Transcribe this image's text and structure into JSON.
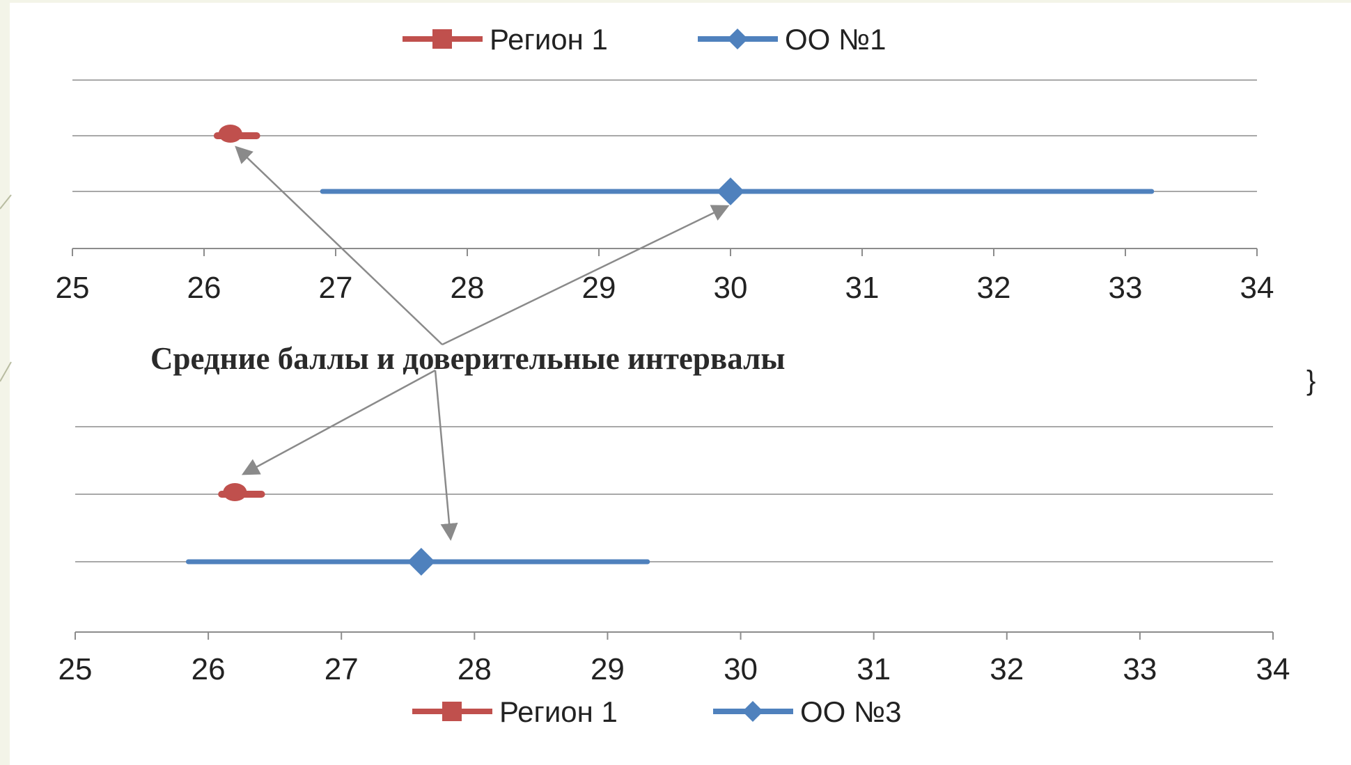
{
  "caption": "Средние баллы и доверительные интервалы",
  "side_glyph": "}",
  "colors": {
    "region": "#c0504d",
    "school": "#4f81bd",
    "grid": "#8c8c8c",
    "axis": "#8c8c8c",
    "arrow": "#8a8a8a"
  },
  "chart_data": [
    {
      "type": "scatter",
      "title": "",
      "xlabel": "",
      "ylabel": "",
      "xlim": [
        25,
        34
      ],
      "xticks": [
        "25",
        "26",
        "27",
        "28",
        "29",
        "30",
        "31",
        "32",
        "33",
        "34"
      ],
      "legend_position": "top",
      "grid": true,
      "series": [
        {
          "name": "Регион 1",
          "marker": "square",
          "mean": 26.2,
          "ci": [
            26.1,
            26.4
          ]
        },
        {
          "name": "ОО №1",
          "marker": "diamond",
          "mean": 30.0,
          "ci": [
            26.9,
            33.2
          ]
        }
      ]
    },
    {
      "type": "scatter",
      "title": "",
      "xlabel": "",
      "ylabel": "",
      "xlim": [
        25,
        34
      ],
      "xticks": [
        "25",
        "26",
        "27",
        "28",
        "29",
        "30",
        "31",
        "32",
        "33",
        "34"
      ],
      "legend_position": "bottom",
      "grid": true,
      "series": [
        {
          "name": "Регион 1",
          "marker": "square",
          "mean": 26.2,
          "ci": [
            26.1,
            26.4
          ]
        },
        {
          "name": "ОО №3",
          "marker": "diamond",
          "mean": 27.6,
          "ci": [
            25.85,
            29.3
          ]
        }
      ]
    }
  ]
}
